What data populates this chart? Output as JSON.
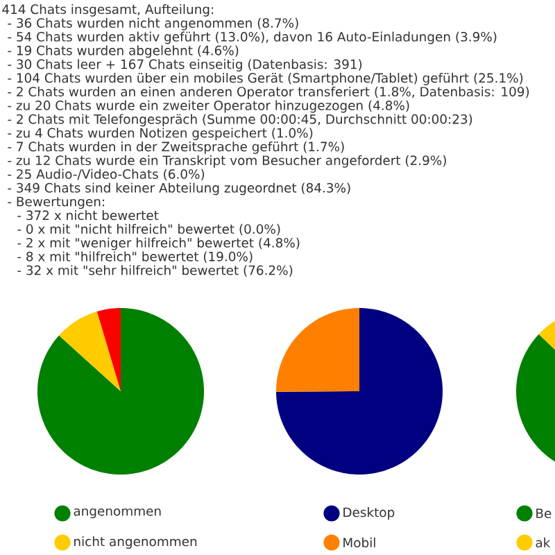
{
  "chart_data": [
    {
      "type": "other",
      "title": "414 Chats insgesamt, Aufteilung:",
      "annotations": [
        "- 36 Chats wurden nicht angenommen (8.7%)",
        "- 54 Chats wurden aktiv geführt (13.0%), davon 16 Auto-Einladungen (3.9%)",
        "- 19 Chats wurden abgelehnt (4.6%)",
        "- 30 Chats leer + 167 Chats einseitig (Datenbasis: 391)",
        "- 104 Chats wurden über ein mobiles Gerät (Smartphone/Tablet) geführt (25.1%)",
        "- 2 Chats wurden an einen anderen Operator transferiert (1.8%, Datenbasis: 109)",
        "- zu 20 Chats wurde ein zweiter Operator hinzugezogen (4.8%)",
        "- 2 Chats mit Telefongespräch (Summe 00:00:45, Durchschnitt 00:00:23)",
        "- zu 4 Chats wurden Notizen gespeichert (1.0%)",
        "- 7 Chats wurden in der Zweitsprache geführt (1.7%)",
        "- zu 12 Chats wurde ein Transkript vom Besucher angefordert (2.9%)",
        "- 25 Audio-/Video-Chats (6.0%)",
        "- 349 Chats sind keiner Abteilung zugeordnet (84.3%)",
        "- Bewertungen:",
        "- 372 x nicht bewertet",
        "- 0 x mit \"nicht hilfreich\" bewertet (0.0%)",
        "- 2 x mit \"weniger hilfreich\" bewertet (4.8%)",
        "- 8 x mit \"hilfreich\" bewertet (19.0%)",
        "- 32 x mit \"sehr hilfreich\" bewertet (76.2%)"
      ]
    },
    {
      "type": "pie",
      "categories": [
        "angenommen",
        "nicht angenommen",
        null
      ],
      "values": [
        86.7,
        8.7,
        4.6
      ],
      "colors": [
        "#008000",
        "#ffcc00",
        "#ff0000"
      ],
      "legend": "bottom"
    },
    {
      "type": "pie",
      "categories": [
        "Desktop",
        "Mobil"
      ],
      "values": [
        74.9,
        25.1
      ],
      "colors": [
        "#000080",
        "#ff8000"
      ],
      "legend": "bottom"
    },
    {
      "type": "pie",
      "categories": [
        "Be",
        "ak"
      ],
      "values": [
        87,
        13
      ],
      "colors": [
        "#008000",
        "#ffcc00"
      ],
      "legend": "bottom"
    }
  ]
}
